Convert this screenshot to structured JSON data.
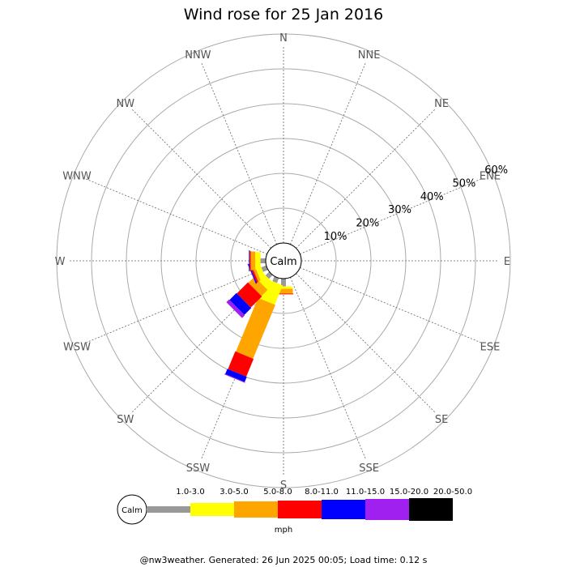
{
  "chart_data": {
    "type": "windrose",
    "title": "Wind rose for 25 Jan 2016",
    "directions": [
      "N",
      "NNE",
      "NE",
      "ENE",
      "E",
      "ESE",
      "SE",
      "SSE",
      "S",
      "SSW",
      "SW",
      "WSW",
      "W",
      "WNW",
      "NW",
      "NNW"
    ],
    "rings": [
      "10%",
      "20%",
      "30%",
      "40%",
      "50%",
      "60%"
    ],
    "ring_max": 60,
    "calm_label": "Calm",
    "speed_bins": [
      {
        "label": "1.0-3.0",
        "color": "#999999"
      },
      {
        "label": "3.0-5.0",
        "color": "#ffff00"
      },
      {
        "label": "5.0-8.0",
        "color": "#ffa500"
      },
      {
        "label": "8.0-11.0",
        "color": "#ff0000"
      },
      {
        "label": "11.0-15.0",
        "color": "#0000ff"
      },
      {
        "label": "15.0-20.0",
        "color": "#a020f0"
      },
      {
        "label": "20.0-50.0",
        "color": "#000000"
      }
    ],
    "unit_label": "mph",
    "series": [
      {
        "direction": "S",
        "values": [
          2.2,
          0.7,
          1.4,
          0.2,
          0,
          0,
          0
        ]
      },
      {
        "direction": "SSW",
        "values": [
          1.5,
          6.0,
          16.7,
          5.5,
          1.6,
          0.2,
          0
        ]
      },
      {
        "direction": "SW",
        "values": [
          1.5,
          2.5,
          2.5,
          4.5,
          2.8,
          1.1,
          0
        ]
      },
      {
        "direction": "WSW",
        "values": [
          1.5,
          1.6,
          0.8,
          0.5,
          0.3,
          0.1,
          0
        ]
      },
      {
        "direction": "W",
        "values": [
          1.5,
          1.5,
          1.3,
          0.3,
          0.2,
          0,
          0
        ]
      }
    ]
  },
  "footer": "@nw3weather. Generated: 26 Jun 2025 00:05; Load time: 0.12 s"
}
